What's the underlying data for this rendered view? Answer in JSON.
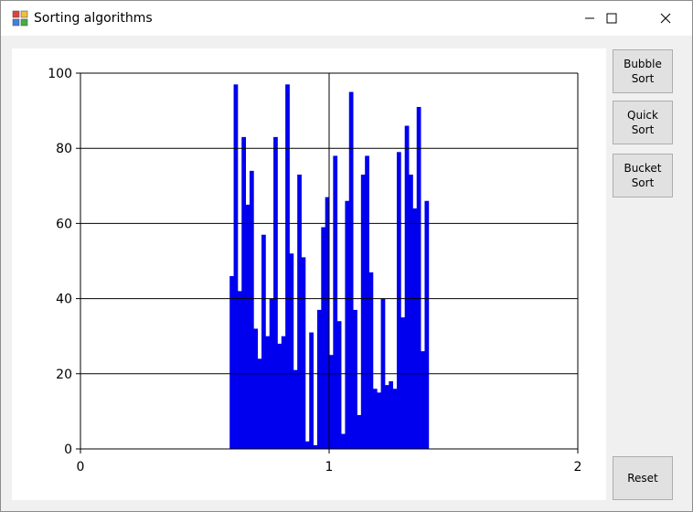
{
  "window": {
    "title": "Sorting algorithms"
  },
  "buttons": {
    "bubble_sort": "Bubble\nSort",
    "quick_sort": "Quick\nSort",
    "bucket_sort": "Bucket\nSort",
    "reset": "Reset"
  },
  "colors": {
    "bar": "#0000ee",
    "grid": "#000000"
  },
  "chart_data": {
    "type": "bar",
    "xlim": [
      0,
      2
    ],
    "ylim": [
      0,
      100
    ],
    "x_ticks": [
      "0",
      "1",
      "2"
    ],
    "y_ticks": [
      "0",
      "20",
      "40",
      "60",
      "80",
      "100"
    ],
    "grid": true,
    "x_start": 0.6,
    "x_end": 1.4,
    "values": [
      46,
      97,
      42,
      83,
      65,
      74,
      32,
      24,
      57,
      30,
      40,
      83,
      28,
      30,
      97,
      52,
      21,
      73,
      51,
      2,
      31,
      1,
      37,
      59,
      67,
      25,
      78,
      34,
      4,
      66,
      95,
      37,
      9,
      73,
      78,
      47,
      16,
      15,
      40,
      17,
      18,
      16,
      79,
      35,
      86,
      73,
      64,
      91,
      26,
      66
    ]
  }
}
